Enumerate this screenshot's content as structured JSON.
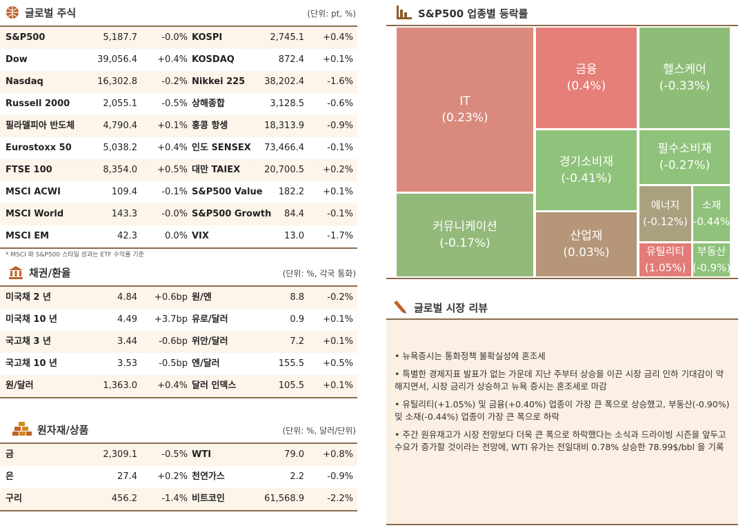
{
  "stocks": {
    "title": "글로벌 주식",
    "unit": "(단위: pt, %)",
    "rows": [
      [
        "S&P500",
        "5,187.7",
        "-0.0%",
        "KOSPI",
        "2,745.1",
        "+0.4%"
      ],
      [
        "Dow",
        "39,056.4",
        "+0.4%",
        "KOSDAQ",
        "872.4",
        "+0.1%"
      ],
      [
        "Nasdaq",
        "16,302.8",
        "-0.2%",
        "Nikkei 225",
        "38,202.4",
        "-1.6%"
      ],
      [
        "Russell 2000",
        "2,055.1",
        "-0.5%",
        "상해종합",
        "3,128.5",
        "-0.6%"
      ],
      [
        "필라델피아 반도체",
        "4,790.4",
        "+0.1%",
        "홍콩 항셍",
        "18,313.9",
        "-0.9%"
      ],
      [
        "Eurostoxx 50",
        "5,038.2",
        "+0.4%",
        "인도 SENSEX",
        "73,466.4",
        "-0.1%"
      ],
      [
        "FTSE 100",
        "8,354.0",
        "+0.5%",
        "대만 TAIEX",
        "20,700.5",
        "+0.2%"
      ],
      [
        "MSCI ACWI",
        "109.4",
        "-0.1%",
        "S&P500 Value",
        "182.2",
        "+0.1%"
      ],
      [
        "MSCI World",
        "143.3",
        "-0.0%",
        "S&P500 Growth",
        "84.4",
        "-0.1%"
      ],
      [
        "MSCI EM",
        "42.3",
        "0.0%",
        "VIX",
        "13.0",
        "-1.7%"
      ]
    ],
    "note": "* MSCI 와 S&P500 스타일 성과는 ETF 수익률 기준"
  },
  "bonds": {
    "title": "채권/환율",
    "unit": "(단위: %, 각국 통화)",
    "rows": [
      [
        "미국채 2 년",
        "4.84",
        "+0.6bp",
        "원/엔",
        "8.8",
        "-0.2%"
      ],
      [
        "미국채 10 년",
        "4.49",
        "+3.7bp",
        "유로/달러",
        "0.9",
        "+0.1%"
      ],
      [
        "국고채 3 년",
        "3.44",
        "-0.6bp",
        "위안/달러",
        "7.2",
        "+0.1%"
      ],
      [
        "국고채 10 년",
        "3.53",
        "-0.5bp",
        "엔/달러",
        "155.5",
        "+0.5%"
      ],
      [
        "원/달러",
        "1,363.0",
        "+0.4%",
        "달러 인덱스",
        "105.5",
        "+0.1%"
      ]
    ]
  },
  "commodities": {
    "title": "원자재/상품",
    "unit": "(단위: %, 달러/단위)",
    "rows": [
      [
        "금",
        "2,309.1",
        "-0.5%",
        "WTI",
        "79.0",
        "+0.8%"
      ],
      [
        "은",
        "27.4",
        "+0.2%",
        "천연가스",
        "2.2",
        "-0.9%"
      ],
      [
        "구리",
        "456.2",
        "-1.4%",
        "비트코인",
        "61,568.9",
        "-2.2%"
      ]
    ]
  },
  "treemap": {
    "title": "S&P500 업종별 등락률",
    "cells": [
      {
        "label": "IT",
        "value": "(0.23%)"
      },
      {
        "label": "커뮤니케이션",
        "value": "(-0.17%)"
      },
      {
        "label": "금융",
        "value": "(0.4%)"
      },
      {
        "label": "경기소비재",
        "value": "(-0.41%)"
      },
      {
        "label": "산업재",
        "value": "(0.03%)"
      },
      {
        "label": "헬스케어",
        "value": "(-0.33%)"
      },
      {
        "label": "필수소비재",
        "value": "(-0.27%)"
      },
      {
        "label": "에너지",
        "value": "(-0.12%)"
      },
      {
        "label": "소재",
        "value": "(-0.44%)"
      },
      {
        "label": "유틸리티",
        "value": "(1.05%)"
      },
      {
        "label": "부동산",
        "value": "(-0.9%)"
      }
    ]
  },
  "review": {
    "title": "글로벌 시장 리뷰",
    "bullets": [
      "• 뉴욕증시는 통화정책 불확실성에 혼조세",
      "• 특별한 경제지표 발표가 없는 가운데 지난 주부터 상승을 이끈 시장 금리 인하 기대감이 약해지면서, 시장 금리가 상승하고 뉴욕 증시는 혼조세로 마감",
      "• 유틸리티(+1.05%) 및 금융(+0.40%) 업종이 가장 큰 폭으로 상승했고, 부동산(-0.90%) 및 소재(-0.44%) 업종이 가장 큰 폭으로 하락",
      "• 주간 원유재고가 시장 전망보다 더욱 큰 폭으로 하락했다는 소식과 드라이빙 시즌을 앞두고 수요가 증가할 것이라는 전망에, WTI 유가는 전일대비 0.78% 상승한 78.99$/bbl 을 기록"
    ]
  }
}
